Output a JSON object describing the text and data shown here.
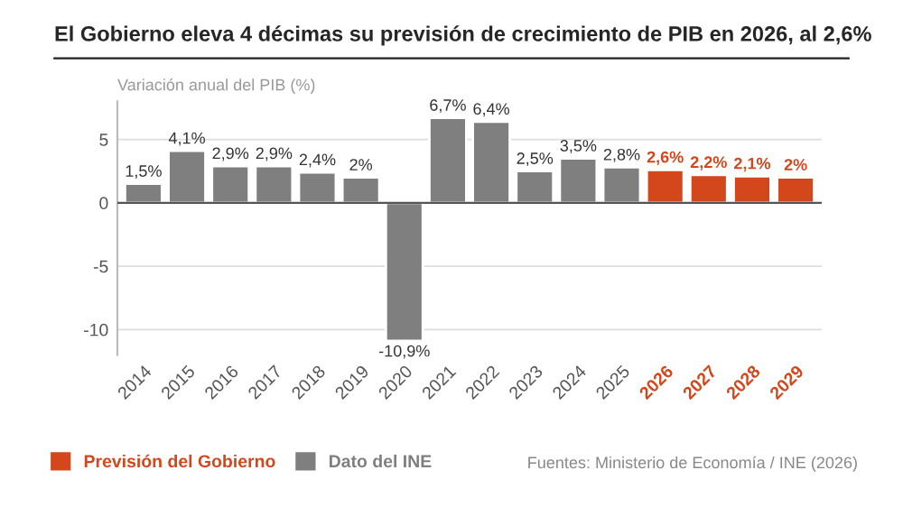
{
  "chart_data": {
    "type": "bar",
    "title": "El Gobierno eleva 4 décimas su previsión de crecimiento de PIB en 2026, al 2,6%",
    "ylabel": "Variación anual del PIB (%)",
    "categories": [
      "2014",
      "2015",
      "2016",
      "2017",
      "2018",
      "2019",
      "2020",
      "2021",
      "2022",
      "2023",
      "2024",
      "2025",
      "2026",
      "2027",
      "2028",
      "2029"
    ],
    "series": [
      {
        "name": "Previsión del Gobierno",
        "color": "#d4461b",
        "values": [
          null,
          null,
          null,
          null,
          null,
          null,
          null,
          null,
          null,
          null,
          null,
          null,
          2.6,
          2.2,
          2.1,
          2
        ],
        "value_labels": [
          null,
          null,
          null,
          null,
          null,
          null,
          null,
          null,
          null,
          null,
          null,
          null,
          "2,6%",
          "2,2%",
          "2,1%",
          "2%"
        ]
      },
      {
        "name": "Dato del INE",
        "color": "#7f7f7f",
        "values": [
          1.5,
          4.1,
          2.9,
          2.9,
          2.4,
          2,
          -10.9,
          6.7,
          6.4,
          2.5,
          3.5,
          2.8,
          null,
          null,
          null,
          null
        ],
        "value_labels": [
          "1,5%",
          "4,1%",
          "2,9%",
          "2,9%",
          "2,4%",
          "2%",
          "-10,9%",
          "6,7%",
          "6,4%",
          "2,5%",
          "3,5%",
          "2,8%",
          null,
          null,
          null,
          null
        ]
      }
    ],
    "ylim": [
      -12,
      8
    ],
    "yticks": [
      -10,
      -5,
      0,
      5
    ],
    "grid": "y",
    "legend": "bottom left",
    "annotations": [
      "Fuentes: Ministerio de Economía / INE (2026)"
    ]
  }
}
